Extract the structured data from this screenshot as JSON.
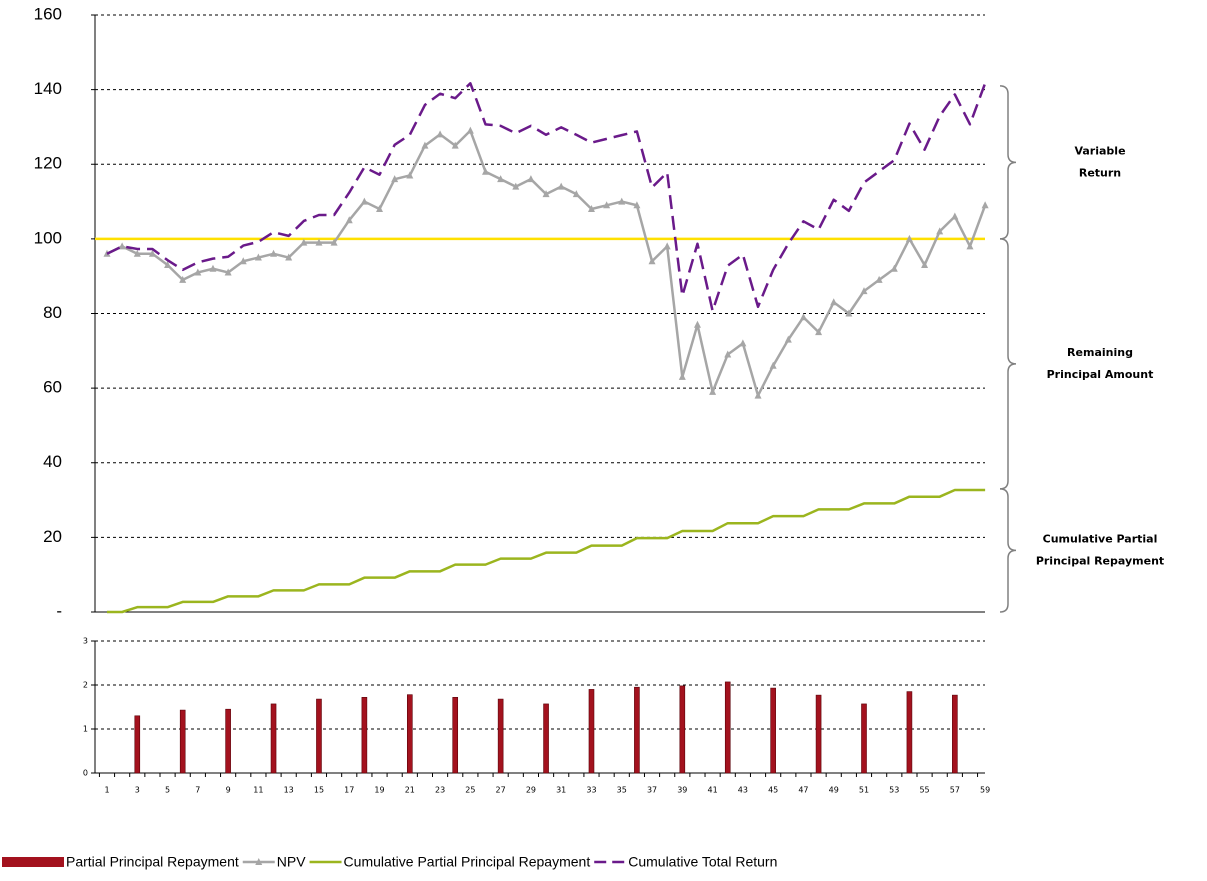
{
  "chart_data": [
    {
      "type": "line",
      "ylim": [
        0,
        160
      ],
      "yticks": [
        {
          "value": 0,
          "label": "-"
        },
        20,
        40,
        60,
        80,
        100,
        120,
        140,
        160
      ],
      "grid": true,
      "reference_line": {
        "value": 100,
        "color": "#ffe000"
      },
      "series": [
        {
          "name": "NPV",
          "color": "#a6a6a6",
          "marker": "triangle",
          "values": [
            96,
            98,
            96,
            96,
            93,
            89,
            91,
            92,
            91,
            94,
            95,
            96,
            95,
            99,
            99,
            99,
            105,
            110,
            108,
            116,
            117,
            125,
            128,
            125,
            129,
            118,
            116,
            114,
            116,
            112,
            114,
            112,
            108,
            109,
            110,
            109,
            94,
            98,
            63,
            77,
            59,
            69,
            72,
            58,
            66,
            73,
            79,
            75,
            83,
            80,
            86,
            89,
            92,
            100,
            93,
            102,
            106,
            98,
            109
          ]
        },
        {
          "name": "Cumulative Partial Principal Repayment",
          "color": "#9bb51e",
          "values": [
            0,
            0,
            1.3,
            1.3,
            1.3,
            2.7,
            2.7,
            2.7,
            4.2,
            4.2,
            4.2,
            5.8,
            5.8,
            5.8,
            7.4,
            7.4,
            7.4,
            9.2,
            9.2,
            9.2,
            10.9,
            10.9,
            10.9,
            12.7,
            12.7,
            12.7,
            14.3,
            14.3,
            14.3,
            15.9,
            15.9,
            15.9,
            17.8,
            17.8,
            17.8,
            19.8,
            19.8,
            19.8,
            21.7,
            21.7,
            21.7,
            23.8,
            23.8,
            23.8,
            25.7,
            25.7,
            25.7,
            27.5,
            27.5,
            27.5,
            29.1,
            29.1,
            29.1,
            30.9,
            30.9,
            30.9,
            32.7,
            32.7,
            32.7
          ]
        },
        {
          "name": "Cumulative Total Return",
          "color": "#6a1a8a",
          "dashed": true,
          "values": [
            96,
            98,
            97.3,
            97.3,
            94.3,
            91.7,
            93.7,
            94.7,
            95.2,
            98.2,
            99.2,
            101.8,
            100.8,
            104.8,
            106.4,
            106.4,
            112.4,
            119.2,
            117.2,
            125.2,
            127.9,
            135.9,
            138.9,
            137.7,
            141.7,
            130.7,
            130.3,
            128.3,
            130.3,
            127.9,
            129.9,
            127.9,
            125.8,
            126.8,
            127.8,
            128.8,
            113.8,
            117.8,
            84.7,
            98.7,
            80.7,
            92.8,
            95.8,
            81.8,
            91.7,
            98.7,
            104.7,
            102.5,
            110.5,
            107.5,
            115.1,
            118.1,
            121.1,
            130.9,
            123.9,
            132.9,
            138.7,
            130.7,
            141.7
          ]
        }
      ],
      "annotations": [
        {
          "text": [
            "Variable",
            "Return"
          ],
          "from": 100,
          "to": 141
        },
        {
          "text": [
            "Remaining",
            "Principal Amount"
          ],
          "from": 33,
          "to": 100
        },
        {
          "text": [
            "Cumulative Partial",
            "Principal Repayment"
          ],
          "from": 0,
          "to": 33
        }
      ]
    },
    {
      "type": "bar",
      "categories": [
        1,
        null,
        3,
        null,
        5,
        null,
        7,
        null,
        9,
        null,
        11,
        null,
        13,
        null,
        15,
        null,
        17,
        null,
        19,
        null,
        21,
        null,
        23,
        null,
        25,
        null,
        27,
        null,
        29,
        null,
        31,
        null,
        33,
        null,
        35,
        null,
        37,
        null,
        39,
        null,
        41,
        null,
        43,
        null,
        45,
        null,
        47,
        null,
        49,
        null,
        51,
        null,
        53,
        null,
        55,
        null,
        57,
        null,
        59
      ],
      "ylim": [
        0,
        3
      ],
      "yticks": [
        0,
        1,
        2,
        3
      ],
      "grid": true,
      "series": [
        {
          "name": "Partial Principal Repayment",
          "color": "#a3121e",
          "values": [
            null,
            null,
            1.3,
            null,
            null,
            1.43,
            null,
            null,
            1.45,
            null,
            null,
            1.57,
            null,
            null,
            1.68,
            null,
            null,
            1.72,
            null,
            null,
            1.78,
            null,
            null,
            1.72,
            null,
            null,
            1.68,
            null,
            null,
            1.57,
            null,
            null,
            1.9,
            null,
            null,
            1.95,
            null,
            null,
            1.98,
            null,
            null,
            2.07,
            null,
            null,
            1.93,
            null,
            null,
            1.77,
            null,
            null,
            1.57,
            null,
            null,
            1.85,
            null,
            null,
            1.77,
            null,
            null
          ]
        }
      ]
    }
  ]
}
